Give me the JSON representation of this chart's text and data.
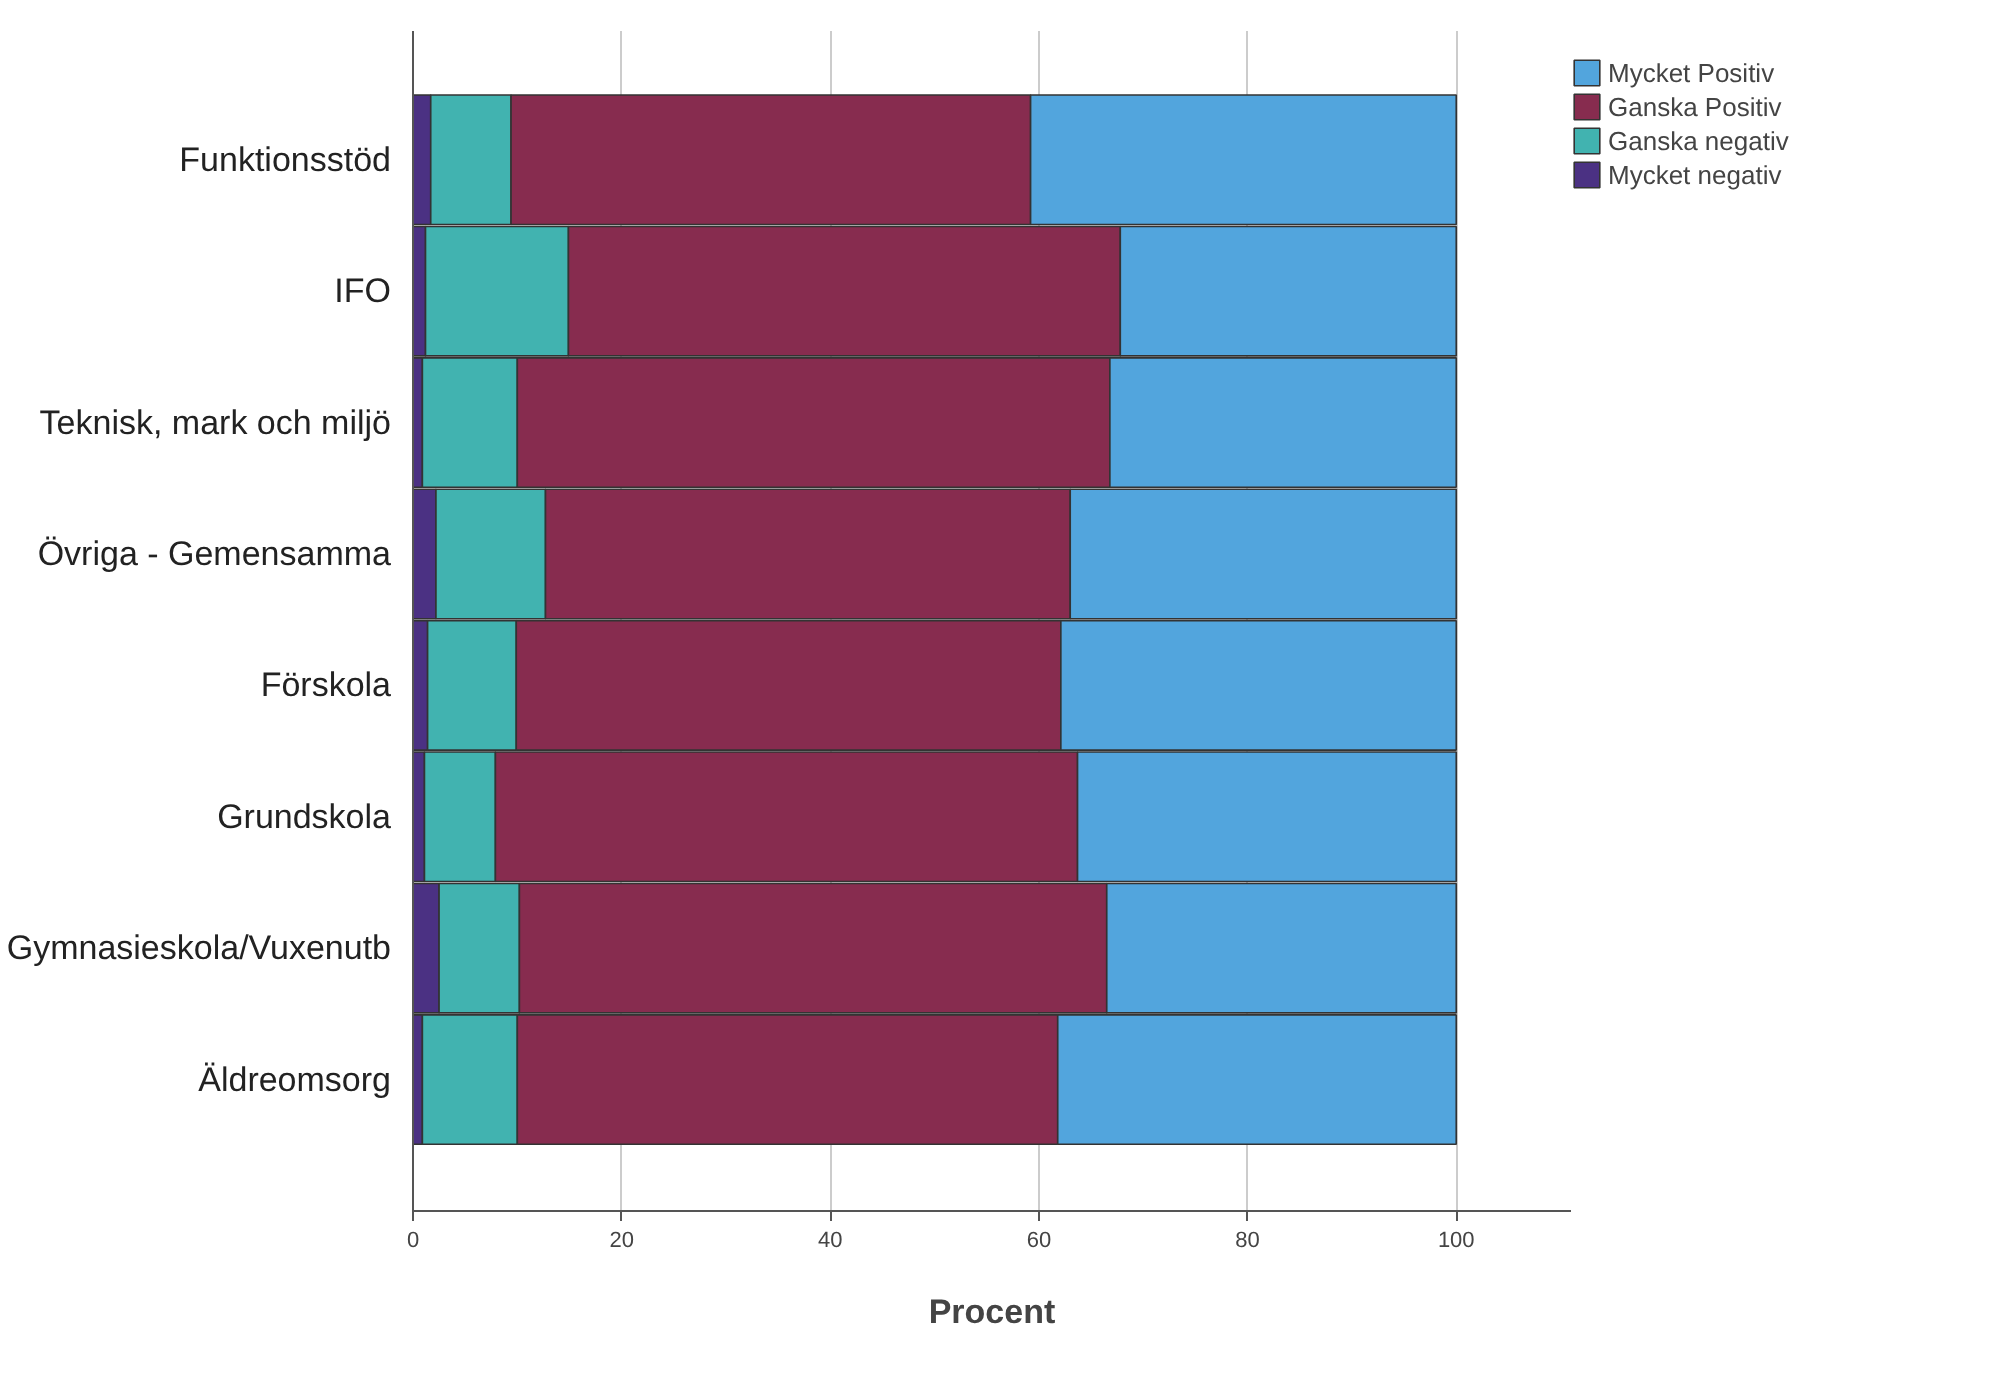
{
  "chart_data": {
    "type": "bar",
    "orientation": "horizontal",
    "stacked": true,
    "xlabel": "Procent",
    "categories": [
      "Funktionsstöd",
      "IFO",
      "Teknisk, mark och miljö",
      "Övriga - Gemensamma",
      "Förskola",
      "Grundskola",
      "Gymnasieskola/Vuxenutb",
      "Äldreomsorg"
    ],
    "series": [
      {
        "name": "Mycket negativ",
        "color": "#4b3183",
        "values": [
          1.7,
          1.2,
          0.9,
          2.2,
          1.4,
          1.1,
          2.5,
          0.9
        ]
      },
      {
        "name": "Ganska negativ",
        "color": "#41b3b0",
        "values": [
          7.7,
          13.7,
          9.1,
          10.5,
          8.5,
          6.8,
          7.7,
          9.1
        ]
      },
      {
        "name": "Ganska Positiv",
        "color": "#872c4f",
        "values": [
          49.8,
          52.9,
          56.8,
          50.3,
          52.2,
          55.8,
          56.3,
          51.8
        ]
      },
      {
        "name": "Mycket Positiv",
        "color": "#52a5dd",
        "values": [
          40.8,
          32.2,
          33.2,
          37.0,
          37.9,
          36.3,
          33.5,
          38.2
        ]
      }
    ],
    "xlim": [
      0,
      111
    ],
    "xticks": [
      0,
      20,
      40,
      60,
      80,
      100
    ],
    "grid": "x",
    "legend": "top right"
  }
}
